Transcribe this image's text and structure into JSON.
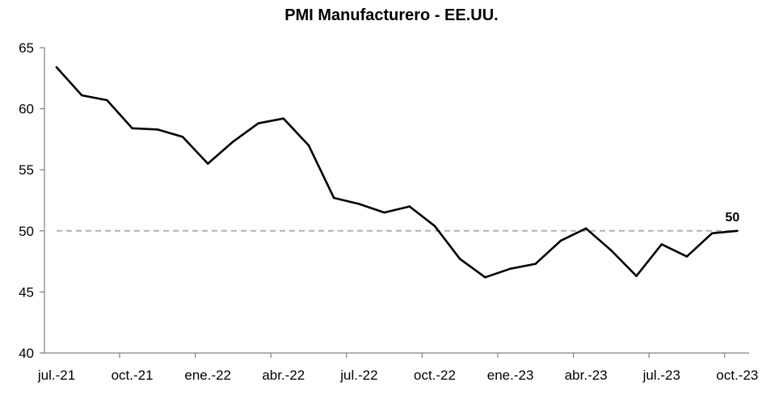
{
  "chart_data": {
    "type": "line",
    "title": "PMI Manufacturero - EE.UU.",
    "xlabel": "",
    "ylabel": "",
    "ylim": [
      40,
      65
    ],
    "yticks": [
      40,
      45,
      50,
      55,
      60,
      65
    ],
    "x": [
      "jul.-21",
      "ago.-21",
      "sep.-21",
      "oct.-21",
      "nov.-21",
      "dic.-21",
      "ene.-22",
      "feb.-22",
      "mar.-22",
      "abr.-22",
      "may.-22",
      "jun.-22",
      "jul.-22",
      "ago.-22",
      "sep.-22",
      "oct.-22",
      "nov.-22",
      "dic.-22",
      "ene.-23",
      "feb.-23",
      "mar.-23",
      "abr.-23",
      "may.-23",
      "jun.-23",
      "jul.-23",
      "ago.-23",
      "sep.-23",
      "oct.-23"
    ],
    "x_tick_labels": [
      "jul.-21",
      "oct.-21",
      "ene.-22",
      "abr.-22",
      "jul.-22",
      "oct.-22",
      "ene.-23",
      "abr.-23",
      "jul.-23",
      "oct.-23"
    ],
    "series": [
      {
        "values": [
          63.4,
          61.1,
          60.7,
          58.4,
          58.3,
          57.7,
          55.5,
          57.3,
          58.8,
          59.2,
          57.0,
          52.7,
          52.2,
          51.5,
          52.0,
          50.4,
          47.7,
          46.2,
          46.9,
          47.3,
          49.2,
          50.2,
          48.4,
          46.3,
          48.9,
          47.9,
          49.8,
          50.0
        ],
        "color": "#000000"
      }
    ],
    "reference_line": {
      "value": 50,
      "color": "#b0b0b0",
      "style": "dashed"
    },
    "end_label": "50",
    "grid": false,
    "colors": {
      "line": "#000000",
      "axis": "#808080",
      "reference": "#b0b0b0"
    }
  }
}
